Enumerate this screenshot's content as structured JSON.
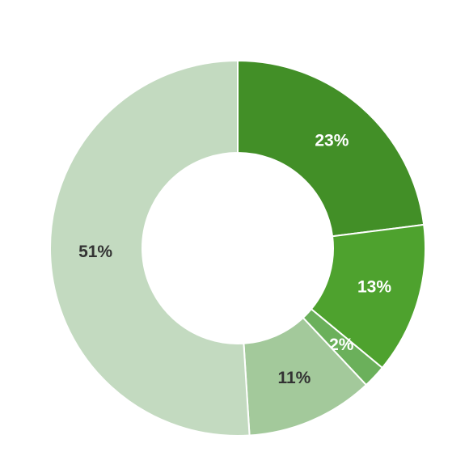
{
  "chart_data": {
    "type": "donut",
    "values": [
      23,
      13,
      2,
      11,
      51
    ],
    "value_labels": [
      "23%",
      "13%",
      "2%",
      "11%",
      "51%"
    ],
    "colors": [
      "#428f27",
      "#4ea22e",
      "#6bb05b",
      "#a3c99b",
      "#c3dac0"
    ]
  }
}
